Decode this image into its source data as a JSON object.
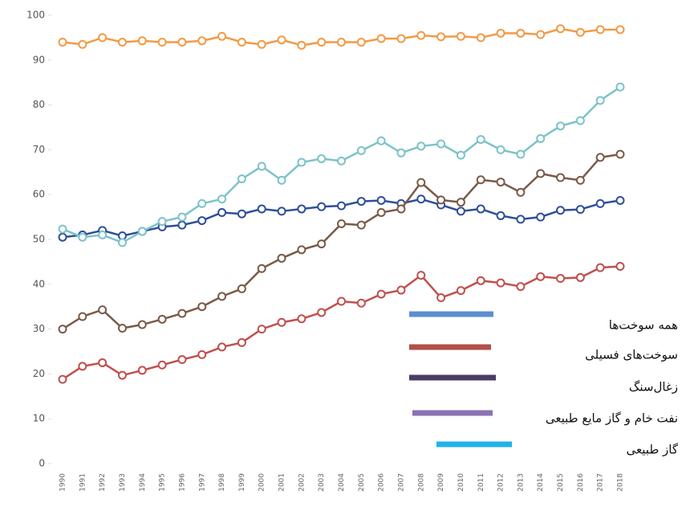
{
  "chart_data": {
    "type": "line",
    "categories": [
      "1990",
      "1991",
      "1992",
      "1993",
      "1994",
      "1995",
      "1996",
      "1997",
      "1998",
      "1999",
      "2000",
      "2001",
      "2002",
      "2003",
      "2004",
      "2005",
      "2006",
      "2007",
      "2008",
      "2009",
      "2010",
      "2011",
      "2012",
      "2013",
      "2014",
      "2015",
      "2016",
      "2017",
      "2018"
    ],
    "ylim": [
      0,
      100
    ],
    "yticks": [
      0,
      10,
      20,
      30,
      40,
      50,
      60,
      70,
      80,
      90,
      100
    ],
    "series": [
      {
        "name": "همه سوخت‌ها",
        "color": "#2f4f9a",
        "legend_color": "#5b8fcf",
        "values": [
          50.5,
          51,
          52,
          50.8,
          51.8,
          52.8,
          53.2,
          54.2,
          56,
          55.7,
          56.8,
          56.3,
          56.8,
          57.3,
          57.5,
          58.5,
          58.7,
          58,
          59,
          57.7,
          56.3,
          56.8,
          55.3,
          54.5,
          55,
          56.5,
          56.7,
          58,
          58.7
        ]
      },
      {
        "name": "سوخت‌های فسیلی",
        "color": "#c0504d",
        "legend_color": "#b0504a",
        "values": [
          18.8,
          21.7,
          22.5,
          19.7,
          20.8,
          22,
          23.2,
          24.3,
          26,
          27,
          30,
          31.5,
          32.3,
          33.7,
          36.2,
          35.8,
          37.8,
          38.7,
          42,
          37,
          38.6,
          40.8,
          40.3,
          39.5,
          41.7,
          41.3,
          41.5,
          43.7,
          44
        ]
      },
      {
        "name": "زغال‌سنگ",
        "color": "#7a5a48",
        "legend_color": "#4b3c63",
        "values": [
          30,
          32.8,
          34.3,
          30.2,
          31,
          32.2,
          33.5,
          35,
          37.3,
          39,
          43.5,
          45.8,
          47.7,
          49,
          53.5,
          53.2,
          56,
          56.8,
          62.7,
          58.8,
          58.3,
          63.3,
          62.8,
          60.5,
          64.7,
          63.8,
          63.2,
          68.3,
          69
        ]
      },
      {
        "name": "نفت خام و گاز مایع طبیعی",
        "color": "#f29a45",
        "legend_color": "#8b72b3",
        "values": [
          94,
          93.5,
          95,
          94,
          94.3,
          94,
          94,
          94.3,
          95.3,
          94,
          93.5,
          94.5,
          93.3,
          94,
          94,
          94,
          94.8,
          94.8,
          95.5,
          95.2,
          95.3,
          95,
          96,
          96,
          95.7,
          97,
          96.2,
          96.8,
          96.8
        ]
      },
      {
        "name": "گاز طبیعی",
        "color": "#7cc3c8",
        "legend_color": "#1fb2e8",
        "values": [
          52.3,
          50.5,
          51,
          49.3,
          51.8,
          54,
          55,
          58,
          59,
          63.5,
          66.3,
          63.2,
          67.2,
          68,
          67.5,
          69.8,
          72,
          69.3,
          70.8,
          71.3,
          68.8,
          72.3,
          70,
          69,
          72.5,
          75.3,
          76.5,
          81,
          84
        ]
      }
    ]
  }
}
